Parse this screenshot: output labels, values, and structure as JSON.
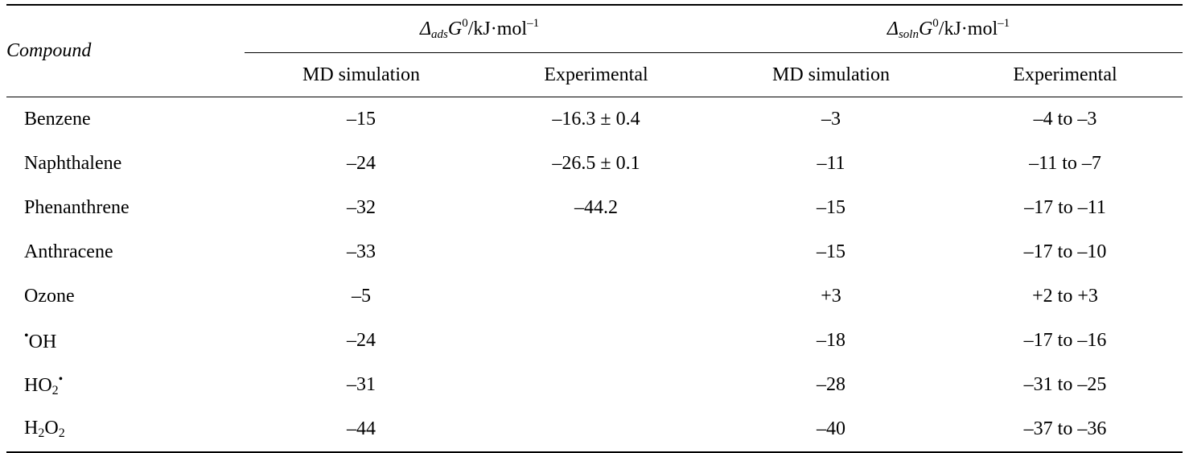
{
  "table": {
    "header": {
      "compound_label": "Compound",
      "group_ads": {
        "symbol": "Δ",
        "subscript": "ads",
        "variable": "G",
        "superscript": "0",
        "unit": "/kJ·mol",
        "unit_exponent": "–1"
      },
      "group_soln": {
        "symbol": "Δ",
        "subscript": "soln",
        "variable": "G",
        "superscript": "0",
        "unit": "/kJ·mol",
        "unit_exponent": "–1"
      },
      "subheaders": [
        "MD simulation",
        "Experimental",
        "MD simulation",
        "Experimental"
      ]
    },
    "rows": [
      {
        "name": "Benzene",
        "ads_md": "–15",
        "ads_exp": "–16.3 ± 0.4",
        "soln_md": "–3",
        "soln_exp": "–4 to –3"
      },
      {
        "name": "Naphthalene",
        "ads_md": "–24",
        "ads_exp": "–26.5 ± 0.1",
        "soln_md": "–11",
        "soln_exp": "–11 to –7"
      },
      {
        "name": "Phenanthrene",
        "ads_md": "–32",
        "ads_exp": "–44.2",
        "soln_md": "–15",
        "soln_exp": "–17 to –11"
      },
      {
        "name": "Anthracene",
        "ads_md": "–33",
        "ads_exp": "",
        "soln_md": "–15",
        "soln_exp": "–17 to –10"
      },
      {
        "name": "Ozone",
        "ads_md": "–5",
        "ads_exp": "",
        "soln_md": "+3",
        "soln_exp": "+2 to +3"
      },
      {
        "name_radical": "•",
        "name": "OH",
        "ads_md": "–24",
        "ads_exp": "",
        "soln_md": "–18",
        "soln_exp": "–17 to –16"
      },
      {
        "name_a": "HO",
        "name_sub": "2",
        "name_radical": "•",
        "ads_md": "–31",
        "ads_exp": "",
        "soln_md": "–28",
        "soln_exp": "–31 to –25"
      },
      {
        "name_a": "H",
        "name_sub": "2",
        "name_b": "O",
        "name_sub2": "2",
        "ads_md": "–44",
        "ads_exp": "",
        "soln_md": "–40",
        "soln_exp": "–37 to –36"
      }
    ]
  }
}
